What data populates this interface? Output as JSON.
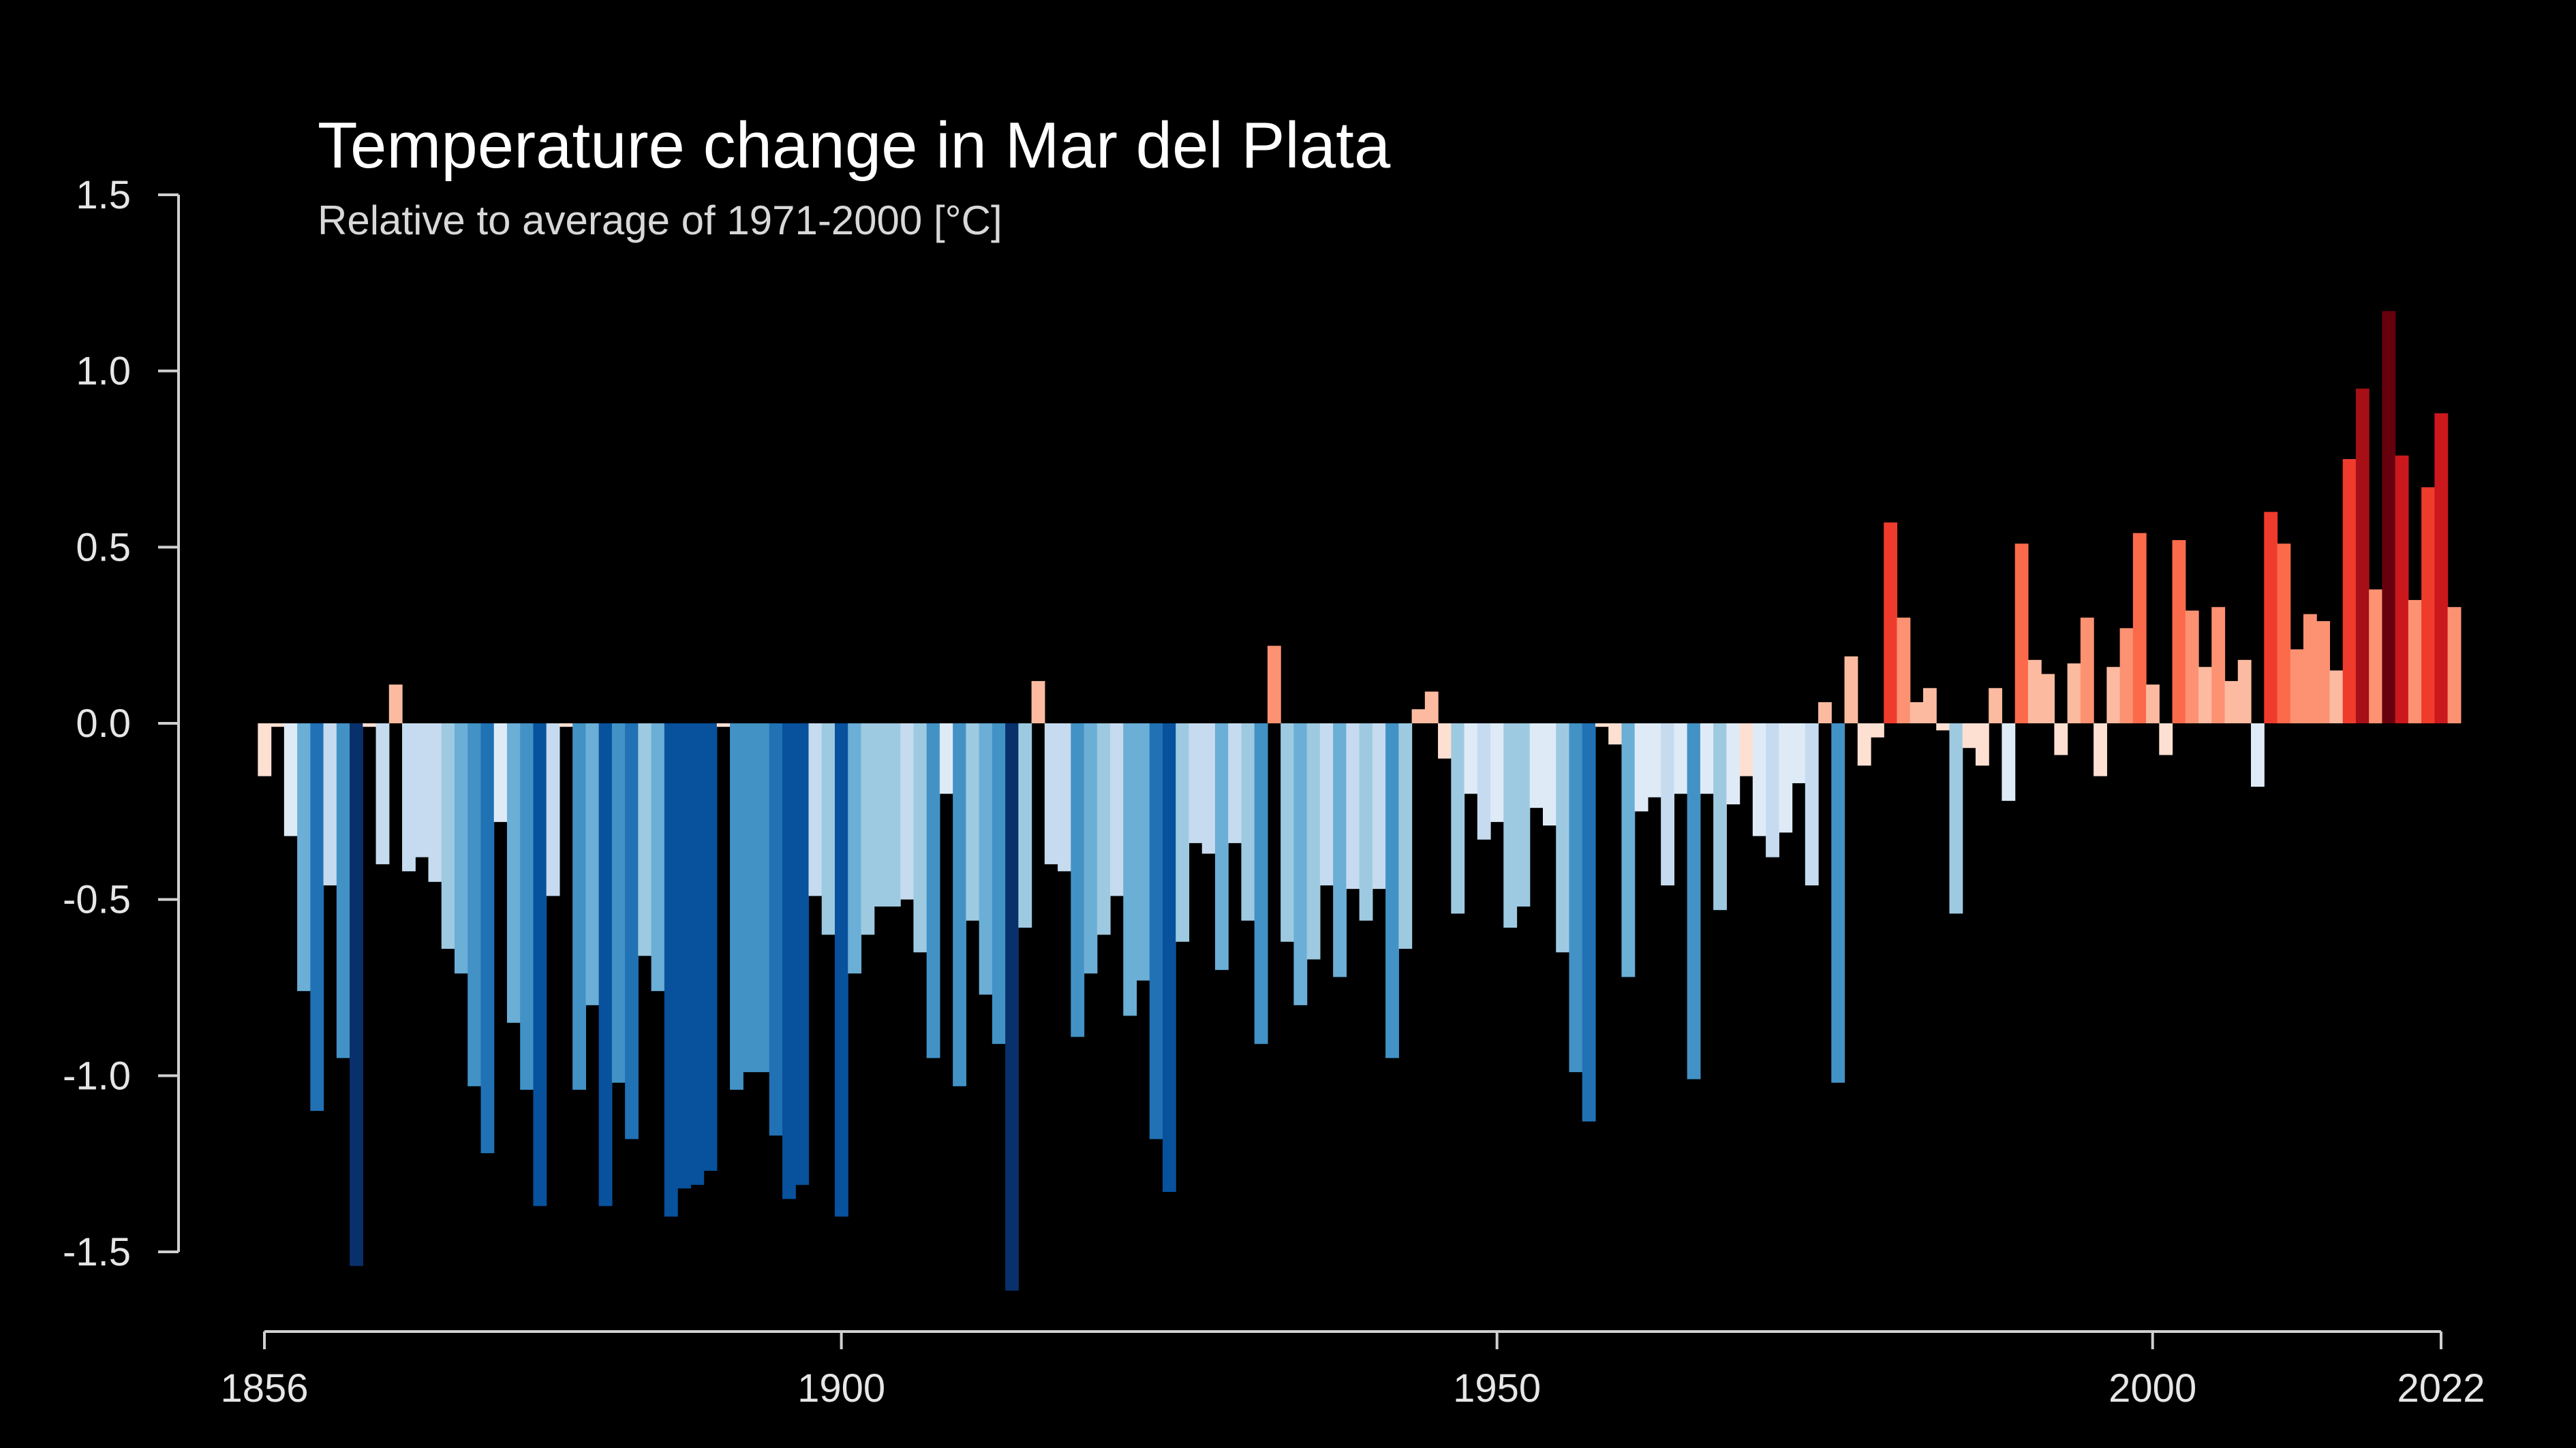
{
  "chart_data": {
    "type": "bar",
    "title": "Temperature change in Mar del Plata",
    "subtitle": "Relative to average of 1971-2000  [°C]",
    "xlabel": "",
    "ylabel": "",
    "x_start": 1856,
    "x_end": 2022,
    "ylim": [
      -1.5,
      1.5
    ],
    "yticks": [
      1.5,
      1.0,
      0.5,
      0.0,
      -0.5,
      -1.0,
      -1.5
    ],
    "ytick_labels": [
      "1.5",
      "1.0",
      "0.5",
      "0.0",
      "-0.5",
      "-1.0",
      "-1.5"
    ],
    "xticks": [
      1856,
      1900,
      1950,
      2000,
      2022
    ],
    "xtick_labels": [
      "1856",
      "1900",
      "1950",
      "2000",
      "2022"
    ],
    "grid": false,
    "legend": "none",
    "colors": {
      "background": "#000000",
      "axis": "#d0d0d0",
      "scale": [
        "#08306b",
        "#08519c",
        "#2171b5",
        "#4292c6",
        "#6baed6",
        "#9ecae1",
        "#c6dbef",
        "#deebf7",
        "#fee0d2",
        "#fcbba1",
        "#fc9272",
        "#fb6a4a",
        "#ef3b2c",
        "#cb181d",
        "#a50f15",
        "#67000d"
      ],
      "scale_min": -1.5,
      "scale_max": 1.2
    },
    "values": [
      -0.15,
      -0.01,
      -0.32,
      -0.76,
      -1.1,
      -0.46,
      -0.95,
      -1.54,
      -0.01,
      -0.4,
      0.11,
      -0.42,
      -0.38,
      -0.45,
      -0.64,
      -0.71,
      -1.03,
      -1.22,
      -0.28,
      -0.85,
      -1.04,
      -1.37,
      -0.49,
      -0.01,
      -1.04,
      -0.8,
      -1.37,
      -1.02,
      -1.18,
      -0.66,
      -0.76,
      -1.4,
      -1.32,
      -1.31,
      -1.27,
      -0.01,
      -1.04,
      -0.99,
      -0.99,
      -1.17,
      -1.35,
      -1.31,
      -0.49,
      -0.6,
      -1.4,
      -0.71,
      -0.6,
      -0.52,
      -0.52,
      -0.5,
      -0.65,
      -0.95,
      -0.2,
      -1.03,
      -0.56,
      -0.77,
      -0.91,
      -1.61,
      -0.58,
      0.12,
      -0.4,
      -0.42,
      -0.89,
      -0.71,
      -0.6,
      -0.49,
      -0.83,
      -0.73,
      -1.18,
      -1.33,
      -0.62,
      -0.34,
      -0.37,
      -0.7,
      -0.34,
      -0.56,
      -0.91,
      0.22,
      -0.62,
      -0.8,
      -0.67,
      -0.46,
      -0.72,
      -0.47,
      -0.56,
      -0.47,
      -0.95,
      -0.64,
      0.04,
      0.09,
      -0.1,
      -0.54,
      -0.2,
      -0.33,
      -0.28,
      -0.58,
      -0.52,
      -0.24,
      -0.29,
      -0.65,
      -0.99,
      -1.13,
      -0.01,
      -0.06,
      -0.72,
      -0.25,
      -0.21,
      -0.46,
      -0.2,
      -1.01,
      -0.2,
      -0.53,
      -0.23,
      -0.15,
      -0.32,
      -0.38,
      -0.31,
      -0.17,
      -0.46,
      0.06,
      -1.02,
      0.19,
      -0.12,
      -0.04,
      0.57,
      0.3,
      0.06,
      0.1,
      -0.02,
      -0.54,
      -0.07,
      -0.12,
      0.1,
      -0.22,
      0.51,
      0.18,
      0.14,
      -0.09,
      0.17,
      0.3,
      -0.15,
      0.16,
      0.27,
      0.54,
      0.11,
      -0.09,
      0.52,
      0.32,
      0.16,
      0.33,
      0.12,
      0.18,
      -0.18,
      0.6,
      0.51,
      0.21,
      0.31,
      0.29,
      0.15,
      0.75,
      0.95,
      0.38,
      1.17,
      0.76,
      0.35,
      0.67,
      0.88,
      0.33
    ]
  }
}
